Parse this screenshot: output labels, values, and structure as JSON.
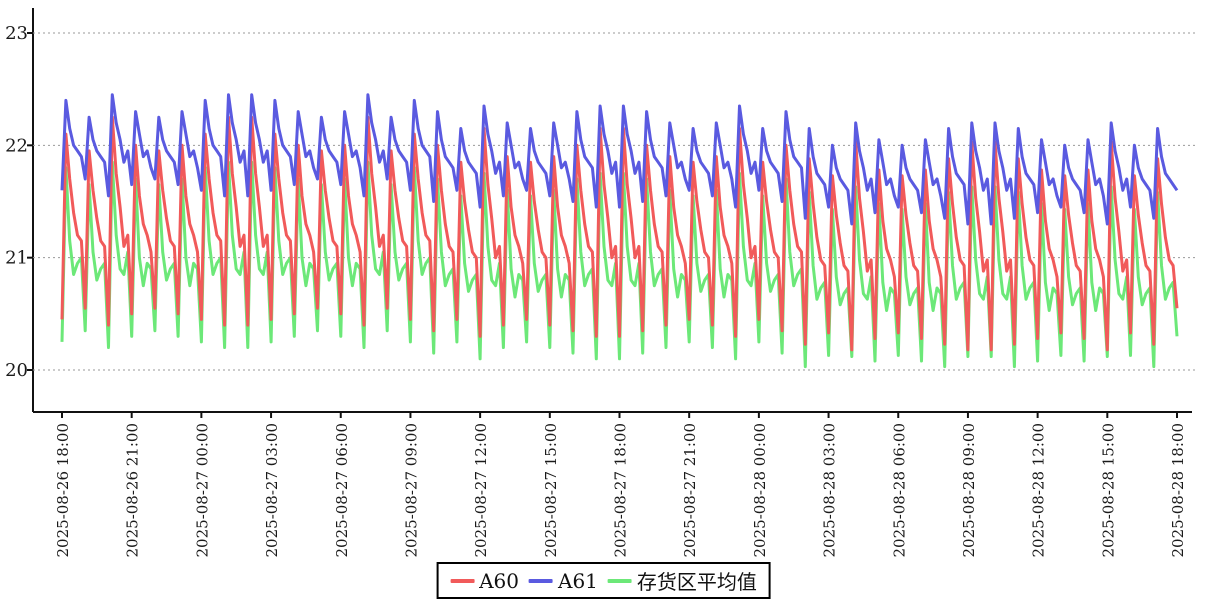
{
  "chart_data": {
    "type": "line",
    "title": "",
    "grid": true,
    "legend_position": "bottom",
    "colors": {
      "axis": "#111111",
      "grid": "#9a9a9a",
      "background": "#ffffff"
    },
    "sampling_interval_minutes": 10,
    "x_axis": {
      "start": "2025-08-26 18:00",
      "end": "2025-08-28 18:00",
      "tick_labels": [
        "2025-08-26 18:00",
        "2025-08-26 21:00",
        "2025-08-27 00:00",
        "2025-08-27 03:00",
        "2025-08-27 06:00",
        "2025-08-27 09:00",
        "2025-08-27 12:00",
        "2025-08-27 15:00",
        "2025-08-27 18:00",
        "2025-08-27 21:00",
        "2025-08-28 00:00",
        "2025-08-28 03:00",
        "2025-08-28 06:00",
        "2025-08-28 09:00",
        "2025-08-28 12:00",
        "2025-08-28 15:00",
        "2025-08-28 18:00"
      ]
    },
    "y_axis": {
      "labels": [
        "23",
        "22",
        "21",
        "20"
      ],
      "ticks": [
        23,
        22,
        21,
        20
      ],
      "min": 20,
      "max": 23
    },
    "series": [
      {
        "name": "A60",
        "color": "#f15a5a",
        "values": [
          20.45,
          22.1,
          21.7,
          21.4,
          21.2,
          21.15,
          20.55,
          21.95,
          21.6,
          21.35,
          21.15,
          21.1,
          20.4,
          22.25,
          21.75,
          21.45,
          21.1,
          21.2,
          20.5,
          22.0,
          21.55,
          21.3,
          21.2,
          21.05,
          20.55,
          21.95,
          21.6,
          21.35,
          21.15,
          21.1,
          20.5,
          22.0,
          21.55,
          21.3,
          21.2,
          21.05,
          20.45,
          22.1,
          21.7,
          21.4,
          21.2,
          21.15,
          20.4,
          22.25,
          21.75,
          21.45,
          21.1,
          21.2,
          20.4,
          22.25,
          21.75,
          21.45,
          21.1,
          21.2,
          20.45,
          22.1,
          21.7,
          21.4,
          21.2,
          21.15,
          20.5,
          22.0,
          21.55,
          21.3,
          21.2,
          21.05,
          20.55,
          21.95,
          21.6,
          21.35,
          21.15,
          21.1,
          20.5,
          22.0,
          21.55,
          21.3,
          21.2,
          21.05,
          20.4,
          22.25,
          21.75,
          21.45,
          21.1,
          21.2,
          20.55,
          21.95,
          21.6,
          21.35,
          21.15,
          21.1,
          20.45,
          22.1,
          21.7,
          21.4,
          21.2,
          21.15,
          20.35,
          22.0,
          21.6,
          21.3,
          21.1,
          21.05,
          20.45,
          21.85,
          21.5,
          21.25,
          21.05,
          21.0,
          20.3,
          22.15,
          21.65,
          21.35,
          21.0,
          21.1,
          20.4,
          21.9,
          21.45,
          21.2,
          21.1,
          20.95,
          20.45,
          21.85,
          21.5,
          21.25,
          21.05,
          21.0,
          20.4,
          21.9,
          21.45,
          21.2,
          21.1,
          20.95,
          20.35,
          22.0,
          21.6,
          21.3,
          21.1,
          21.05,
          20.3,
          22.15,
          21.65,
          21.35,
          21.0,
          21.1,
          20.3,
          22.15,
          21.65,
          21.35,
          21.0,
          21.1,
          20.35,
          22.0,
          21.6,
          21.3,
          21.1,
          21.05,
          20.4,
          21.9,
          21.45,
          21.2,
          21.1,
          20.95,
          20.45,
          21.85,
          21.5,
          21.25,
          21.05,
          21.0,
          20.4,
          21.9,
          21.45,
          21.2,
          21.1,
          20.95,
          20.3,
          22.15,
          21.65,
          21.35,
          21.0,
          21.1,
          20.45,
          21.85,
          21.5,
          21.25,
          21.05,
          21.0,
          20.35,
          22.0,
          21.6,
          21.3,
          21.1,
          21.05,
          20.23,
          21.88,
          21.48,
          21.18,
          20.98,
          20.93,
          20.33,
          21.73,
          21.38,
          21.13,
          20.93,
          20.88,
          20.18,
          22.03,
          21.53,
          21.23,
          20.88,
          20.98,
          20.28,
          21.78,
          21.33,
          21.08,
          20.98,
          20.83,
          20.33,
          21.73,
          21.38,
          21.13,
          20.93,
          20.88,
          20.28,
          21.78,
          21.33,
          21.08,
          20.98,
          20.83,
          20.23,
          21.88,
          21.48,
          21.18,
          20.98,
          20.93,
          20.18,
          22.03,
          21.53,
          21.23,
          20.88,
          20.98,
          20.18,
          22.03,
          21.53,
          21.23,
          20.88,
          20.98,
          20.23,
          21.88,
          21.48,
          21.18,
          20.98,
          20.93,
          20.28,
          21.78,
          21.33,
          21.08,
          20.98,
          20.83,
          20.33,
          21.73,
          21.38,
          21.13,
          20.93,
          20.88,
          20.28,
          21.78,
          21.33,
          21.08,
          20.98,
          20.83,
          20.18,
          22.03,
          21.53,
          21.23,
          20.88,
          20.98,
          20.33,
          21.73,
          21.38,
          21.13,
          20.93,
          20.88,
          20.23,
          21.88,
          21.48,
          21.18,
          20.98,
          20.93,
          20.55
        ]
      },
      {
        "name": "A61",
        "color": "#5a5ae0",
        "values": [
          21.6,
          22.4,
          22.15,
          22.0,
          21.95,
          21.9,
          21.7,
          22.25,
          22.05,
          21.95,
          21.9,
          21.85,
          21.55,
          22.45,
          22.2,
          22.05,
          21.85,
          21.95,
          21.65,
          22.3,
          22.1,
          21.9,
          21.95,
          21.8,
          21.7,
          22.25,
          22.05,
          21.95,
          21.9,
          21.85,
          21.65,
          22.3,
          22.1,
          21.9,
          21.95,
          21.8,
          21.6,
          22.4,
          22.15,
          22.0,
          21.95,
          21.9,
          21.55,
          22.45,
          22.2,
          22.05,
          21.85,
          21.95,
          21.55,
          22.45,
          22.2,
          22.05,
          21.85,
          21.95,
          21.6,
          22.4,
          22.15,
          22.0,
          21.95,
          21.9,
          21.65,
          22.3,
          22.1,
          21.9,
          21.95,
          21.8,
          21.7,
          22.25,
          22.05,
          21.95,
          21.9,
          21.85,
          21.65,
          22.3,
          22.1,
          21.9,
          21.95,
          21.8,
          21.55,
          22.45,
          22.2,
          22.05,
          21.85,
          21.95,
          21.7,
          22.25,
          22.05,
          21.95,
          21.9,
          21.85,
          21.6,
          22.4,
          22.15,
          22.0,
          21.95,
          21.9,
          21.5,
          22.3,
          22.05,
          21.9,
          21.85,
          21.8,
          21.6,
          22.15,
          21.95,
          21.85,
          21.8,
          21.75,
          21.45,
          22.35,
          22.1,
          21.95,
          21.75,
          21.85,
          21.55,
          22.2,
          22.0,
          21.8,
          21.85,
          21.7,
          21.6,
          22.15,
          21.95,
          21.85,
          21.8,
          21.75,
          21.55,
          22.2,
          22.0,
          21.8,
          21.85,
          21.7,
          21.5,
          22.3,
          22.05,
          21.9,
          21.85,
          21.8,
          21.45,
          22.35,
          22.1,
          21.95,
          21.75,
          21.85,
          21.45,
          22.35,
          22.1,
          21.95,
          21.75,
          21.85,
          21.5,
          22.3,
          22.05,
          21.9,
          21.85,
          21.8,
          21.55,
          22.2,
          22.0,
          21.8,
          21.85,
          21.7,
          21.6,
          22.15,
          21.95,
          21.85,
          21.8,
          21.75,
          21.55,
          22.2,
          22.0,
          21.8,
          21.85,
          21.7,
          21.45,
          22.35,
          22.1,
          21.95,
          21.75,
          21.85,
          21.6,
          22.15,
          21.95,
          21.85,
          21.8,
          21.75,
          21.5,
          22.3,
          22.05,
          21.9,
          21.85,
          21.8,
          21.35,
          22.15,
          21.9,
          21.75,
          21.7,
          21.65,
          21.45,
          22.0,
          21.8,
          21.7,
          21.65,
          21.6,
          21.3,
          22.2,
          21.95,
          21.8,
          21.6,
          21.7,
          21.4,
          22.05,
          21.85,
          21.65,
          21.7,
          21.55,
          21.45,
          22.0,
          21.8,
          21.7,
          21.65,
          21.6,
          21.4,
          22.05,
          21.85,
          21.65,
          21.7,
          21.55,
          21.35,
          22.15,
          21.9,
          21.75,
          21.7,
          21.65,
          21.3,
          22.2,
          21.95,
          21.8,
          21.6,
          21.7,
          21.3,
          22.2,
          21.95,
          21.8,
          21.6,
          21.7,
          21.35,
          22.15,
          21.9,
          21.75,
          21.7,
          21.65,
          21.4,
          22.05,
          21.85,
          21.65,
          21.7,
          21.55,
          21.45,
          22.0,
          21.8,
          21.7,
          21.65,
          21.6,
          21.4,
          22.05,
          21.85,
          21.65,
          21.7,
          21.55,
          21.3,
          22.2,
          21.95,
          21.8,
          21.6,
          21.7,
          21.45,
          22.0,
          21.8,
          21.7,
          21.65,
          21.6,
          21.35,
          22.15,
          21.9,
          21.75,
          21.7,
          21.65,
          21.6
        ]
      },
      {
        "name": "存货区平均值",
        "color": "#6ce878",
        "values": [
          20.25,
          21.8,
          21.15,
          20.85,
          20.95,
          21.0,
          20.35,
          21.65,
          21.05,
          20.8,
          20.9,
          20.95,
          20.2,
          21.85,
          21.2,
          20.9,
          20.85,
          21.05,
          20.3,
          21.7,
          21.0,
          20.75,
          20.95,
          20.9,
          20.35,
          21.65,
          21.05,
          20.8,
          20.9,
          20.95,
          20.3,
          21.7,
          21.0,
          20.75,
          20.95,
          20.9,
          20.25,
          21.8,
          21.15,
          20.85,
          20.95,
          21.0,
          20.2,
          21.85,
          21.2,
          20.9,
          20.85,
          21.05,
          20.2,
          21.85,
          21.2,
          20.9,
          20.85,
          21.05,
          20.25,
          21.8,
          21.15,
          20.85,
          20.95,
          21.0,
          20.3,
          21.7,
          21.0,
          20.75,
          20.95,
          20.9,
          20.35,
          21.65,
          21.05,
          20.8,
          20.9,
          20.95,
          20.3,
          21.7,
          21.0,
          20.75,
          20.95,
          20.9,
          20.2,
          21.85,
          21.2,
          20.9,
          20.85,
          21.05,
          20.35,
          21.65,
          21.05,
          20.8,
          20.9,
          20.95,
          20.25,
          21.8,
          21.15,
          20.85,
          20.95,
          21.0,
          20.15,
          21.7,
          21.05,
          20.75,
          20.85,
          20.9,
          20.25,
          21.55,
          20.95,
          20.7,
          20.8,
          20.85,
          20.1,
          21.75,
          21.1,
          20.8,
          20.75,
          20.95,
          20.2,
          21.6,
          20.9,
          20.65,
          20.85,
          20.8,
          20.25,
          21.55,
          20.95,
          20.7,
          20.8,
          20.85,
          20.2,
          21.6,
          20.9,
          20.65,
          20.85,
          20.8,
          20.15,
          21.7,
          21.05,
          20.75,
          20.85,
          20.9,
          20.1,
          21.75,
          21.1,
          20.8,
          20.75,
          20.95,
          20.1,
          21.75,
          21.1,
          20.8,
          20.75,
          20.95,
          20.15,
          21.7,
          21.05,
          20.75,
          20.85,
          20.9,
          20.2,
          21.6,
          20.9,
          20.65,
          20.85,
          20.8,
          20.25,
          21.55,
          20.95,
          20.7,
          20.8,
          20.85,
          20.2,
          21.6,
          20.9,
          20.65,
          20.85,
          20.8,
          20.1,
          21.75,
          21.1,
          20.8,
          20.75,
          20.95,
          20.25,
          21.55,
          20.95,
          20.7,
          20.8,
          20.85,
          20.15,
          21.7,
          21.05,
          20.75,
          20.85,
          20.9,
          20.03,
          21.58,
          20.93,
          20.63,
          20.73,
          20.78,
          20.13,
          21.43,
          20.83,
          20.58,
          20.68,
          20.73,
          20.12,
          21.63,
          20.98,
          20.68,
          20.63,
          20.83,
          20.08,
          21.48,
          20.78,
          20.53,
          20.73,
          20.68,
          20.13,
          21.43,
          20.83,
          20.58,
          20.68,
          20.73,
          20.08,
          21.48,
          20.78,
          20.53,
          20.73,
          20.68,
          20.03,
          21.58,
          20.93,
          20.63,
          20.73,
          20.78,
          20.12,
          21.63,
          20.98,
          20.68,
          20.63,
          20.83,
          20.12,
          21.63,
          20.98,
          20.68,
          20.63,
          20.83,
          20.03,
          21.58,
          20.93,
          20.63,
          20.73,
          20.78,
          20.08,
          21.48,
          20.78,
          20.53,
          20.73,
          20.68,
          20.13,
          21.43,
          20.83,
          20.58,
          20.68,
          20.73,
          20.08,
          21.48,
          20.78,
          20.53,
          20.73,
          20.68,
          20.12,
          21.63,
          20.98,
          20.68,
          20.63,
          20.83,
          20.13,
          21.43,
          20.83,
          20.58,
          20.68,
          20.73,
          20.03,
          21.58,
          20.93,
          20.63,
          20.73,
          20.78,
          20.3
        ]
      }
    ]
  }
}
